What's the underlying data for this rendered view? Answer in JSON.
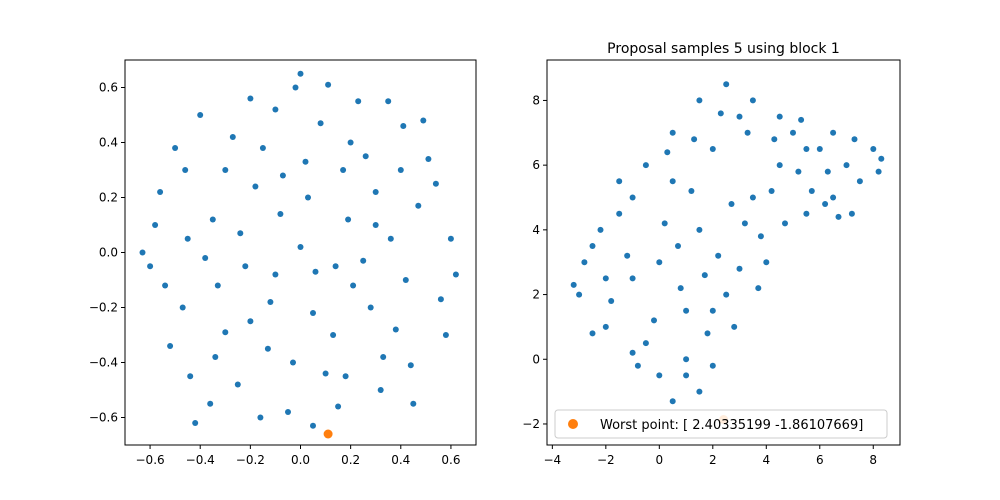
{
  "chart_data": [
    {
      "type": "scatter",
      "title": "",
      "xlabel": "",
      "ylabel": "",
      "xlim": [
        -0.7,
        0.7
      ],
      "ylim": [
        -0.7,
        0.7
      ],
      "xticks": [
        -0.6,
        -0.4,
        -0.2,
        0.0,
        0.2,
        0.4,
        0.6
      ],
      "xtick_labels": [
        "−0.6",
        "−0.4",
        "−0.2",
        "0.0",
        "0.2",
        "0.4",
        "0.6"
      ],
      "yticks": [
        -0.6,
        -0.4,
        -0.2,
        0.0,
        0.2,
        0.4,
        0.6
      ],
      "ytick_labels": [
        "−0.6",
        "−0.4",
        "−0.2",
        "0.0",
        "0.2",
        "0.4",
        "0.6"
      ],
      "grid": false,
      "series": [
        {
          "color": "#1f77b4",
          "points": [
            [
              -0.42,
              -0.62
            ],
            [
              -0.46,
              0.3
            ],
            [
              -0.3,
              -0.29
            ],
            [
              0.41,
              0.46
            ],
            [
              0.06,
              -0.07
            ],
            [
              0.2,
              0.4
            ],
            [
              -0.03,
              -0.4
            ],
            [
              0.56,
              -0.17
            ],
            [
              -0.2,
              0.56
            ],
            [
              0.32,
              -0.5
            ],
            [
              -0.58,
              0.1
            ],
            [
              0.11,
              0.61
            ],
            [
              0.47,
              0.17
            ],
            [
              -0.12,
              -0.18
            ],
            [
              0.25,
              -0.03
            ],
            [
              -0.35,
              0.12
            ],
            [
              0.02,
              0.33
            ],
            [
              -0.52,
              -0.34
            ],
            [
              0.38,
              -0.28
            ],
            [
              -0.08,
              0.14
            ],
            [
              0.15,
              -0.56
            ],
            [
              -0.25,
              -0.48
            ],
            [
              0.6,
              0.05
            ],
            [
              -0.4,
              0.5
            ],
            [
              0.3,
              0.22
            ],
            [
              -0.15,
              0.38
            ],
            [
              0.08,
              0.47
            ],
            [
              -0.6,
              -0.05
            ],
            [
              0.44,
              -0.41
            ],
            [
              -0.22,
              -0.05
            ],
            [
              0.19,
              0.12
            ],
            [
              -0.05,
              -0.58
            ],
            [
              0.51,
              0.34
            ],
            [
              -0.33,
              -0.12
            ],
            [
              0.0,
              0.02
            ],
            [
              0.28,
              -0.2
            ],
            [
              -0.47,
              -0.2
            ],
            [
              0.13,
              -0.3
            ],
            [
              -0.18,
              0.24
            ],
            [
              0.36,
              0.05
            ],
            [
              -0.1,
              0.52
            ],
            [
              0.23,
              0.55
            ],
            [
              -0.56,
              0.22
            ],
            [
              0.42,
              -0.1
            ],
            [
              -0.27,
              0.42
            ],
            [
              0.05,
              -0.22
            ],
            [
              -0.44,
              -0.45
            ],
            [
              0.33,
              -0.38
            ],
            [
              -0.02,
              0.6
            ],
            [
              0.58,
              -0.3
            ],
            [
              -0.36,
              -0.55
            ],
            [
              0.17,
              0.3
            ],
            [
              -0.13,
              -0.35
            ],
            [
              0.49,
              0.48
            ],
            [
              -0.5,
              0.38
            ],
            [
              0.1,
              -0.44
            ],
            [
              -0.24,
              0.07
            ],
            [
              0.26,
              0.35
            ],
            [
              -0.38,
              -0.02
            ],
            [
              0.03,
              0.2
            ],
            [
              0.45,
              -0.55
            ],
            [
              -0.16,
              -0.6
            ],
            [
              0.35,
              0.55
            ],
            [
              -0.54,
              -0.12
            ],
            [
              0.21,
              -0.12
            ],
            [
              -0.07,
              0.28
            ],
            [
              0.54,
              0.25
            ],
            [
              -0.3,
              0.3
            ],
            [
              0.14,
              -0.05
            ],
            [
              -0.45,
              0.05
            ],
            [
              0.62,
              -0.08
            ],
            [
              -0.63,
              0.0
            ],
            [
              0.0,
              0.65
            ],
            [
              0.05,
              -0.63
            ],
            [
              -0.2,
              -0.25
            ],
            [
              0.3,
              0.1
            ],
            [
              -0.1,
              -0.08
            ],
            [
              0.4,
              0.3
            ],
            [
              -0.34,
              -0.38
            ],
            [
              0.18,
              -0.45
            ]
          ]
        },
        {
          "name": "",
          "color": "#ff7f0e",
          "points": [
            [
              0.11,
              -0.66
            ]
          ]
        }
      ]
    },
    {
      "type": "scatter",
      "title": "Proposal samples 5 using block 1",
      "xlabel": "",
      "ylabel": "",
      "xlim": [
        -4.2,
        9.0
      ],
      "ylim": [
        -2.65,
        9.25
      ],
      "xticks": [
        -4,
        -2,
        0,
        2,
        4,
        6,
        8
      ],
      "xtick_labels": [
        "−4",
        "−2",
        "0",
        "2",
        "4",
        "6",
        "8"
      ],
      "yticks": [
        -2,
        0,
        2,
        4,
        6,
        8
      ],
      "ytick_labels": [
        "−2",
        "0",
        "2",
        "4",
        "6",
        "8"
      ],
      "grid": false,
      "legend_position": "bottom-right",
      "legend_entries": [
        "Worst point: [ 2.40335199 -1.86107669]"
      ],
      "series": [
        {
          "color": "#1f77b4",
          "points": [
            [
              -3.0,
              2.0
            ],
            [
              -2.5,
              3.5
            ],
            [
              -2.0,
              1.0
            ],
            [
              -1.5,
              4.5
            ],
            [
              -1.0,
              2.5
            ],
            [
              -0.5,
              0.5
            ],
            [
              0.0,
              3.0
            ],
            [
              0.5,
              5.5
            ],
            [
              1.0,
              1.5
            ],
            [
              1.5,
              4.0
            ],
            [
              2.0,
              6.5
            ],
            [
              2.5,
              2.0
            ],
            [
              3.0,
              7.5
            ],
            [
              3.5,
              5.0
            ],
            [
              4.0,
              3.0
            ],
            [
              4.5,
              6.0
            ],
            [
              5.0,
              7.0
            ],
            [
              5.5,
              4.5
            ],
            [
              6.0,
              6.5
            ],
            [
              6.5,
              5.0
            ],
            [
              7.0,
              6.0
            ],
            [
              7.5,
              5.5
            ],
            [
              8.0,
              6.5
            ],
            [
              8.3,
              6.2
            ],
            [
              1.5,
              -1.0
            ],
            [
              1.0,
              -0.5
            ],
            [
              2.0,
              -0.2
            ],
            [
              0.5,
              -1.3
            ],
            [
              -1.0,
              0.2
            ],
            [
              -2.0,
              2.5
            ],
            [
              -2.8,
              3.0
            ],
            [
              -1.5,
              5.5
            ],
            [
              -0.5,
              6.0
            ],
            [
              0.5,
              7.0
            ],
            [
              1.5,
              8.0
            ],
            [
              2.5,
              8.5
            ],
            [
              3.5,
              8.0
            ],
            [
              4.5,
              7.5
            ],
            [
              5.5,
              6.5
            ],
            [
              6.5,
              7.0
            ],
            [
              -2.5,
              0.8
            ],
            [
              -1.8,
              1.8
            ],
            [
              -1.2,
              3.2
            ],
            [
              0.2,
              4.2
            ],
            [
              1.2,
              5.2
            ],
            [
              2.2,
              3.2
            ],
            [
              3.2,
              4.2
            ],
            [
              4.2,
              5.2
            ],
            [
              5.2,
              5.8
            ],
            [
              6.2,
              4.8
            ],
            [
              7.2,
              4.5
            ],
            [
              -0.2,
              1.2
            ],
            [
              0.8,
              2.2
            ],
            [
              1.8,
              0.8
            ],
            [
              2.8,
              1.0
            ],
            [
              3.0,
              2.8
            ],
            [
              3.8,
              3.8
            ],
            [
              0.0,
              -0.5
            ],
            [
              1.0,
              0.0
            ],
            [
              2.0,
              1.5
            ],
            [
              -3.2,
              2.3
            ],
            [
              -2.2,
              4.0
            ],
            [
              -1.0,
              5.0
            ],
            [
              0.3,
              6.4
            ],
            [
              1.3,
              6.8
            ],
            [
              2.3,
              7.6
            ],
            [
              3.3,
              7.0
            ],
            [
              4.3,
              6.8
            ],
            [
              5.3,
              7.4
            ],
            [
              6.3,
              5.8
            ],
            [
              7.3,
              6.8
            ],
            [
              8.2,
              5.8
            ],
            [
              -0.8,
              -0.2
            ],
            [
              0.7,
              3.5
            ],
            [
              1.7,
              2.6
            ],
            [
              2.7,
              4.8
            ],
            [
              3.7,
              2.2
            ],
            [
              4.7,
              4.2
            ],
            [
              5.7,
              5.2
            ],
            [
              6.7,
              4.4
            ]
          ]
        },
        {
          "name": "Worst point: [ 2.40335199 -1.86107669]",
          "color": "#ff7f0e",
          "points": [
            [
              2.40335199,
              -1.86107669
            ]
          ]
        }
      ]
    }
  ]
}
